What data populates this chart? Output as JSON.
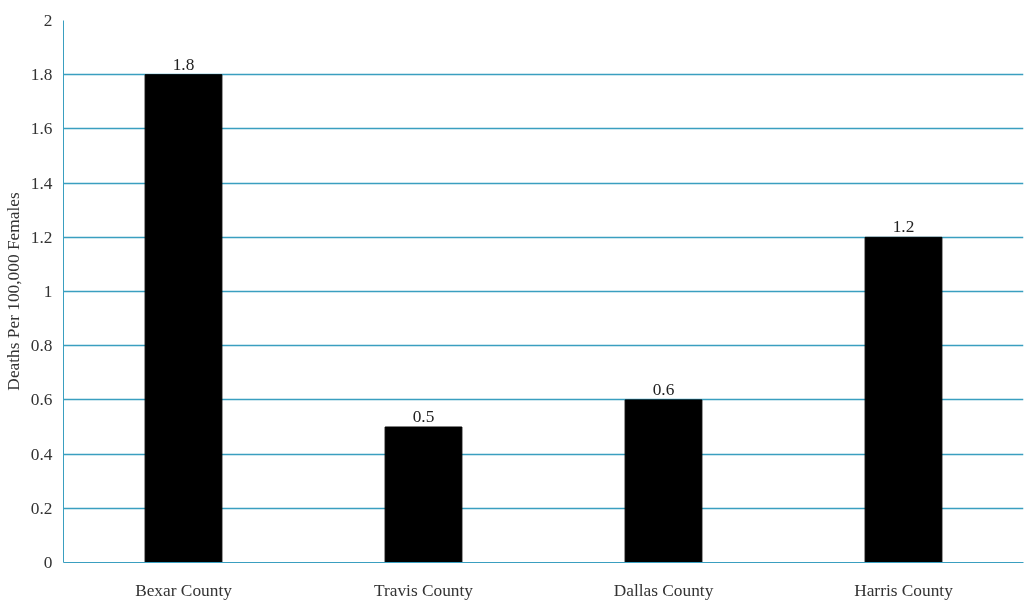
{
  "chart_data": {
    "type": "bar",
    "ylabel": "Deaths Per 100,000 Females",
    "categories": [
      "Bexar County",
      "Travis County",
      "Dallas County",
      "Harris County"
    ],
    "values": [
      1.8,
      0.5,
      0.6,
      1.2
    ],
    "color": "#000000",
    "ylim": [
      0,
      2
    ],
    "yticks": [
      0,
      0.2,
      0.4,
      0.6,
      0.8,
      1,
      1.2,
      1.4,
      1.6,
      1.8,
      2
    ],
    "grid": "y",
    "data_labels": true
  }
}
